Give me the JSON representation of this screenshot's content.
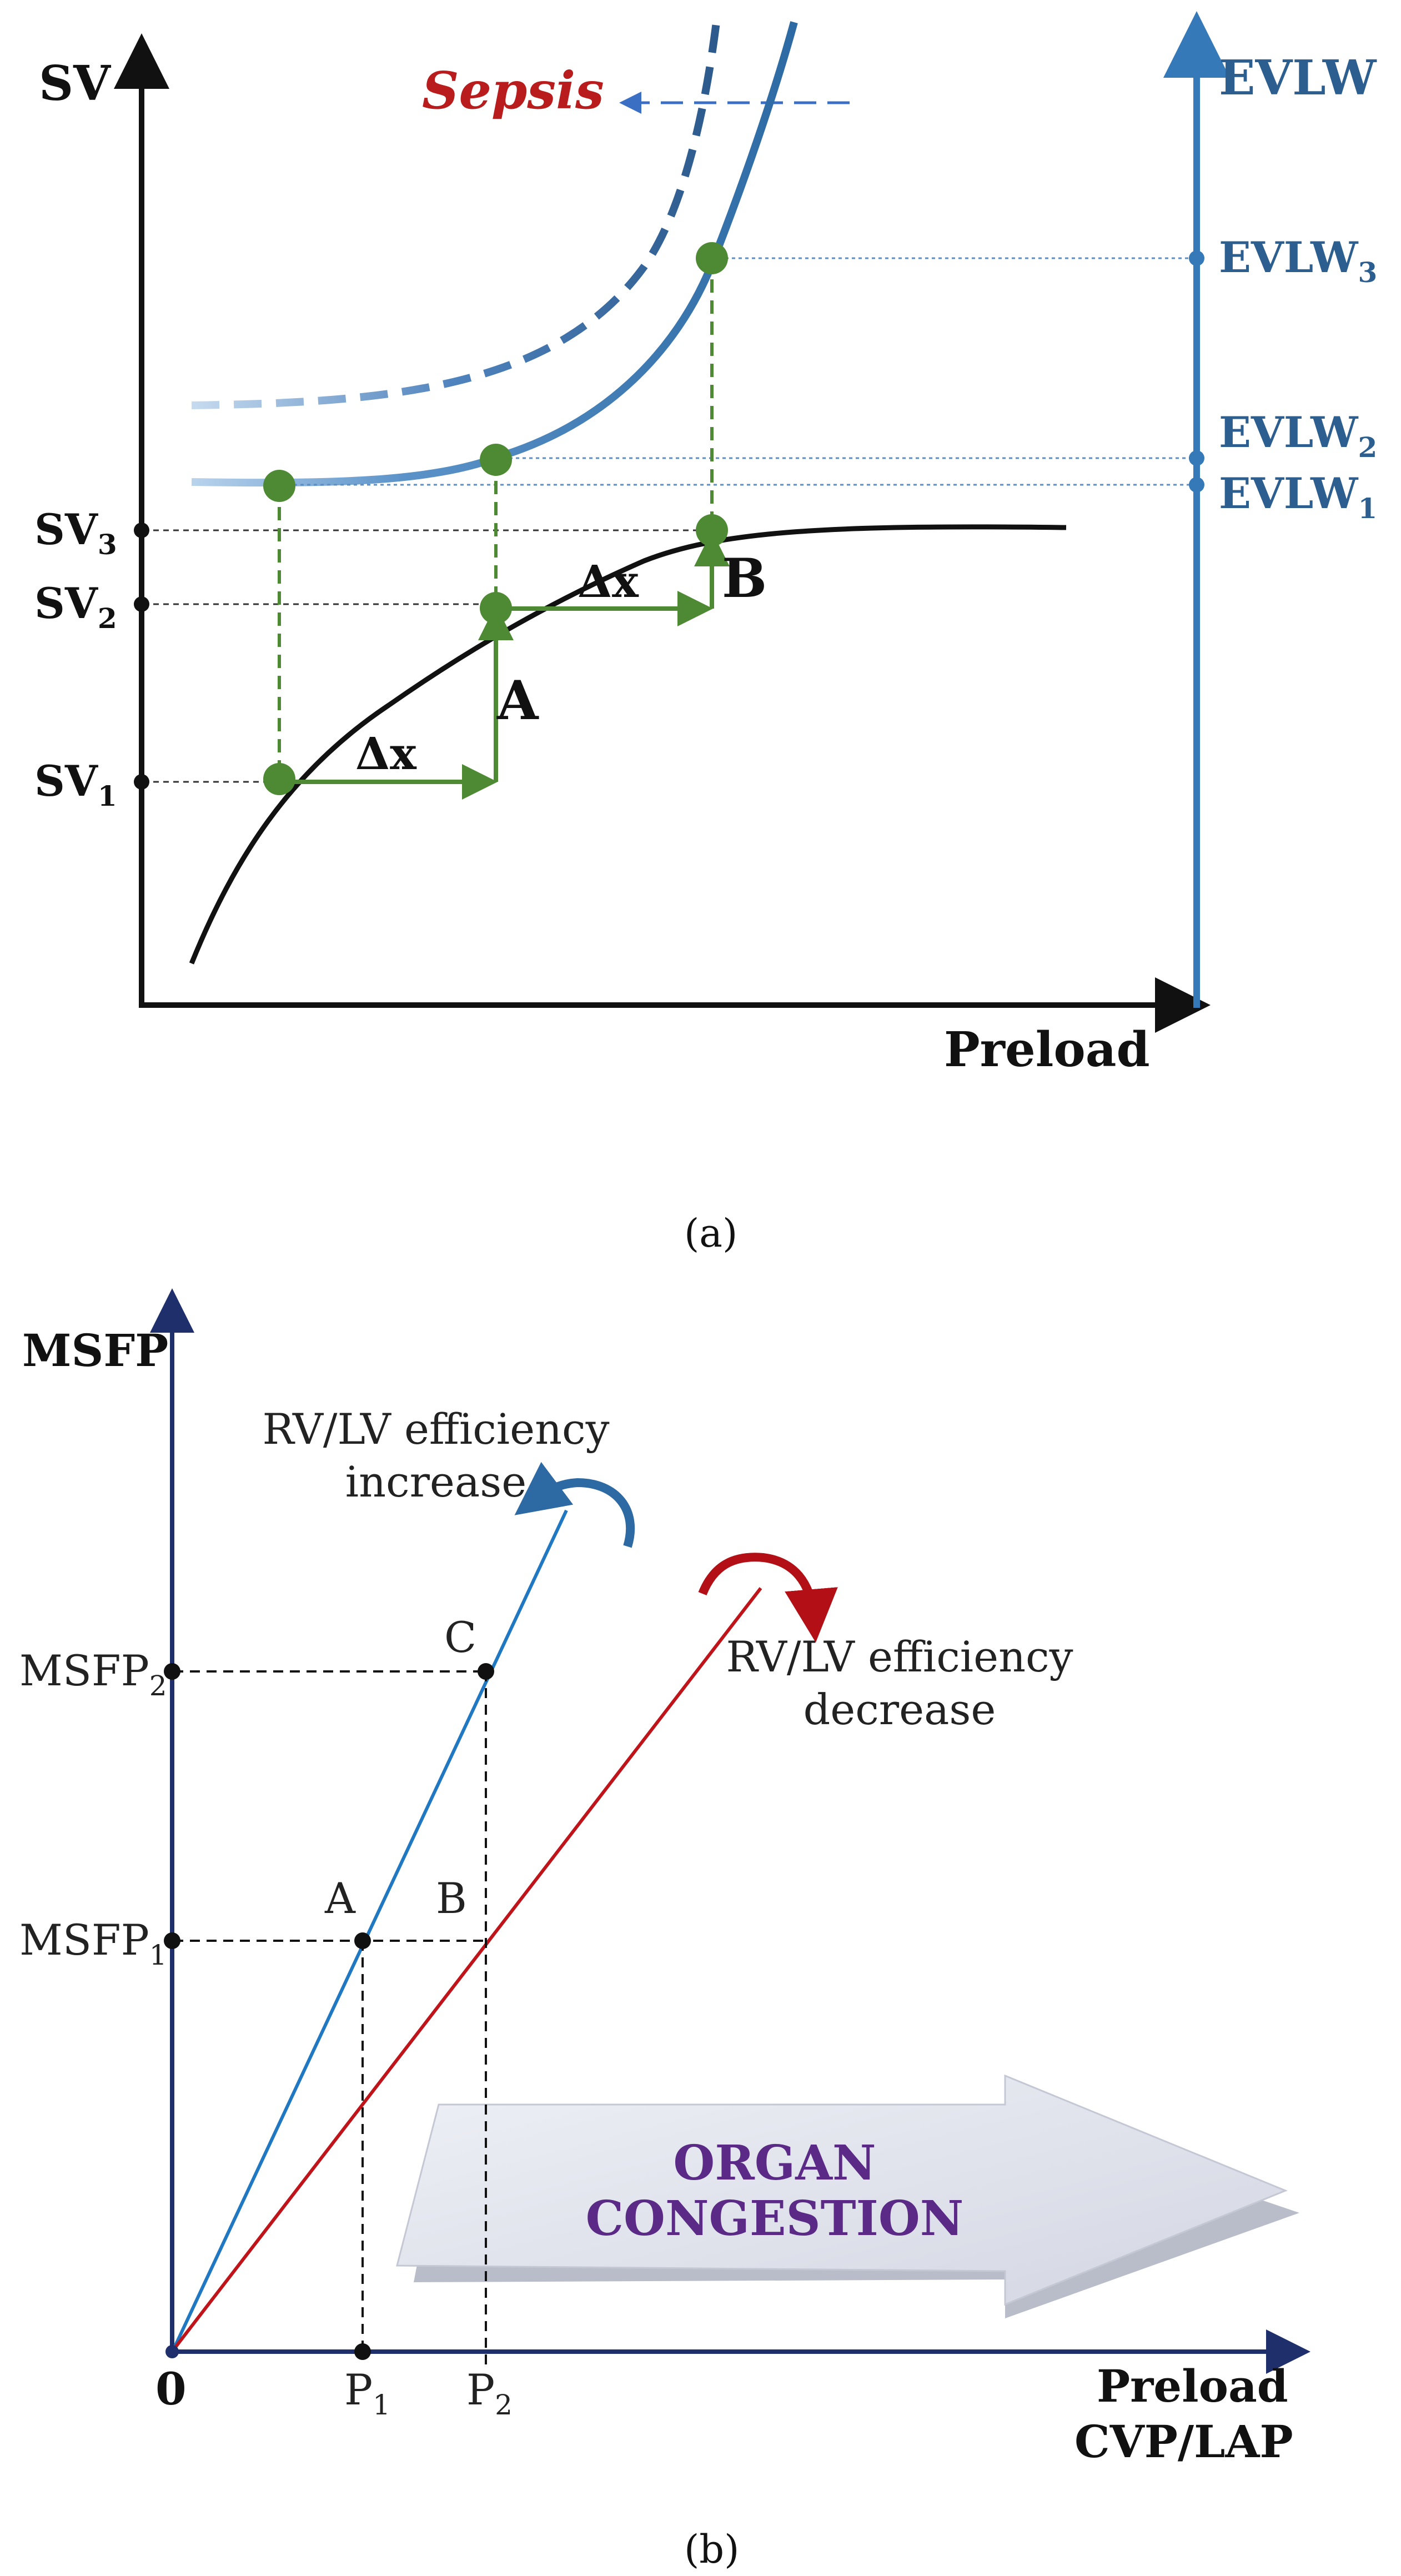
{
  "panel_a": {
    "caption": "(a)",
    "y_axis_label": "SV",
    "x_axis_label": "Preload",
    "right_axis_label": "EVLW",
    "sepsis_label": "Sepsis",
    "sv_ticks": [
      {
        "base": "SV",
        "sub": "3"
      },
      {
        "base": "SV",
        "sub": "2"
      },
      {
        "base": "SV",
        "sub": "1"
      }
    ],
    "evlw_ticks": [
      {
        "base": "EVLW",
        "sub": "3"
      },
      {
        "base": "EVLW",
        "sub": "2"
      },
      {
        "base": "EVLW",
        "sub": "1"
      }
    ],
    "delta_label": "Δx",
    "point_a_label": "A",
    "point_b_label": "B",
    "colors": {
      "frank_starling": "#111111",
      "evlw_curve": "#2d6aa3",
      "sepsis_curve": "#2d5a8c",
      "evlw_axis": "#3579b8",
      "green": "#4e8a34"
    }
  },
  "panel_b": {
    "caption": "(b)",
    "y_axis_label": "MSFP",
    "x_axis_label_line1": "Preload",
    "x_axis_label_line2": "CVP/LAP",
    "origin_label": "0",
    "msfp_ticks": [
      {
        "base": "MSFP",
        "sub": "2"
      },
      {
        "base": "MSFP",
        "sub": "1"
      }
    ],
    "p_ticks": [
      {
        "base": "P",
        "sub": "1"
      },
      {
        "base": "P",
        "sub": "2"
      }
    ],
    "point_labels": {
      "a": "A",
      "b": "B",
      "c": "C"
    },
    "increase_label_line1": "RV/LV efficiency",
    "increase_label_line2": "increase",
    "decrease_label_line1": "RV/LV efficiency",
    "decrease_label_line2": "decrease",
    "arrow_label_line1": "ORGAN",
    "arrow_label_line2": "CONGESTION",
    "colors": {
      "axis": "#1f2f6b",
      "blue_line": "#1f78c1",
      "red_line": "#c0141b",
      "organ_text": "#5a2a86"
    }
  }
}
